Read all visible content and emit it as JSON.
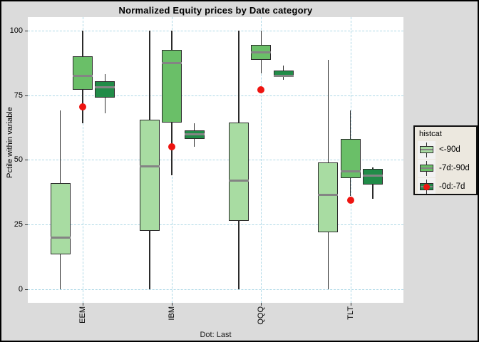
{
  "title": "Normalized Equity prices by Date category",
  "y_axis": {
    "label": "Pctile within variable",
    "ticks": [
      100,
      75,
      50,
      25,
      0
    ]
  },
  "x_axis": {
    "categories": [
      "EEM",
      "IBM",
      "QQQ",
      "TLT"
    ]
  },
  "caption": "Dot: Last",
  "legend": {
    "title": "histcat",
    "entries": [
      {
        "label": "<-90d",
        "color": "#A8DCA2",
        "dot": false
      },
      {
        "label": "-7d:-90d",
        "color": "#6ABF68",
        "dot": false
      },
      {
        "label": "-0d:-7d",
        "color": "#218C48",
        "dot": true
      }
    ]
  },
  "colors": {
    "background": "#DBDBDB",
    "panel": "#FFFFFF",
    "gridline": "#ADD8E6",
    "box_border": "#2B2B2B",
    "median": "#848484",
    "light_green": "#A8DCA2",
    "medium_green": "#6ABF68",
    "dark_green": "#218C48",
    "dot_red": "#EE1410",
    "legend_background": "#ECE8DF"
  },
  "chart_data": {
    "type": "boxplot",
    "title": "Normalized Equity prices by Date category",
    "xlabel": "",
    "ylabel": "Pctile within variable",
    "ylim": [
      0,
      100
    ],
    "y_ticks": [
      0,
      25,
      50,
      75,
      100
    ],
    "grid": {
      "style": "dashed",
      "color": "#ADD8E6"
    },
    "legend_position": "right",
    "categories": [
      "EEM",
      "IBM",
      "QQQ",
      "TLT"
    ],
    "series": [
      {
        "name": "<-90d",
        "color": "#A8DCA2",
        "boxes": [
          {
            "low": 0,
            "q1": 13.5,
            "median": 20,
            "q3": 41,
            "high": 69
          },
          {
            "low": 0,
            "q1": 22.5,
            "median": 47.5,
            "q3": 65.5,
            "high": 100
          },
          {
            "low": 0,
            "q1": 26.5,
            "median": 42,
            "q3": 64.5,
            "high": 100
          },
          {
            "low": 0,
            "q1": 22,
            "median": 36.5,
            "q3": 49,
            "high": 88.5
          }
        ]
      },
      {
        "name": "-7d:-90d",
        "color": "#6ABF68",
        "boxes": [
          {
            "low": 64,
            "q1": 77,
            "median": 82.5,
            "q3": 90,
            "high": 100
          },
          {
            "low": 44,
            "q1": 64.5,
            "median": 87.5,
            "q3": 92.5,
            "high": 100
          },
          {
            "low": 83.5,
            "q1": 88.5,
            "median": 91.5,
            "q3": 94.5,
            "high": 100
          },
          {
            "low": 36,
            "q1": 43,
            "median": 45.5,
            "q3": 58,
            "high": 69
          }
        ]
      },
      {
        "name": "-0d:-7d",
        "color": "#218C48",
        "boxes": [
          {
            "low": 68,
            "q1": 74,
            "median": 78,
            "q3": 80.5,
            "high": 83
          },
          {
            "low": 55,
            "q1": 58,
            "median": 60,
            "q3": 61.5,
            "high": 64
          },
          {
            "low": 81,
            "q1": 82,
            "median": 82.5,
            "q3": 84.5,
            "high": 86.5
          },
          {
            "low": 35,
            "q1": 40.5,
            "median": 44,
            "q3": 46.5,
            "high": 47
          }
        ]
      }
    ],
    "dots": {
      "name": "Last",
      "color": "#EE1410",
      "values": [
        70.5,
        55,
        77,
        34.5
      ]
    }
  }
}
